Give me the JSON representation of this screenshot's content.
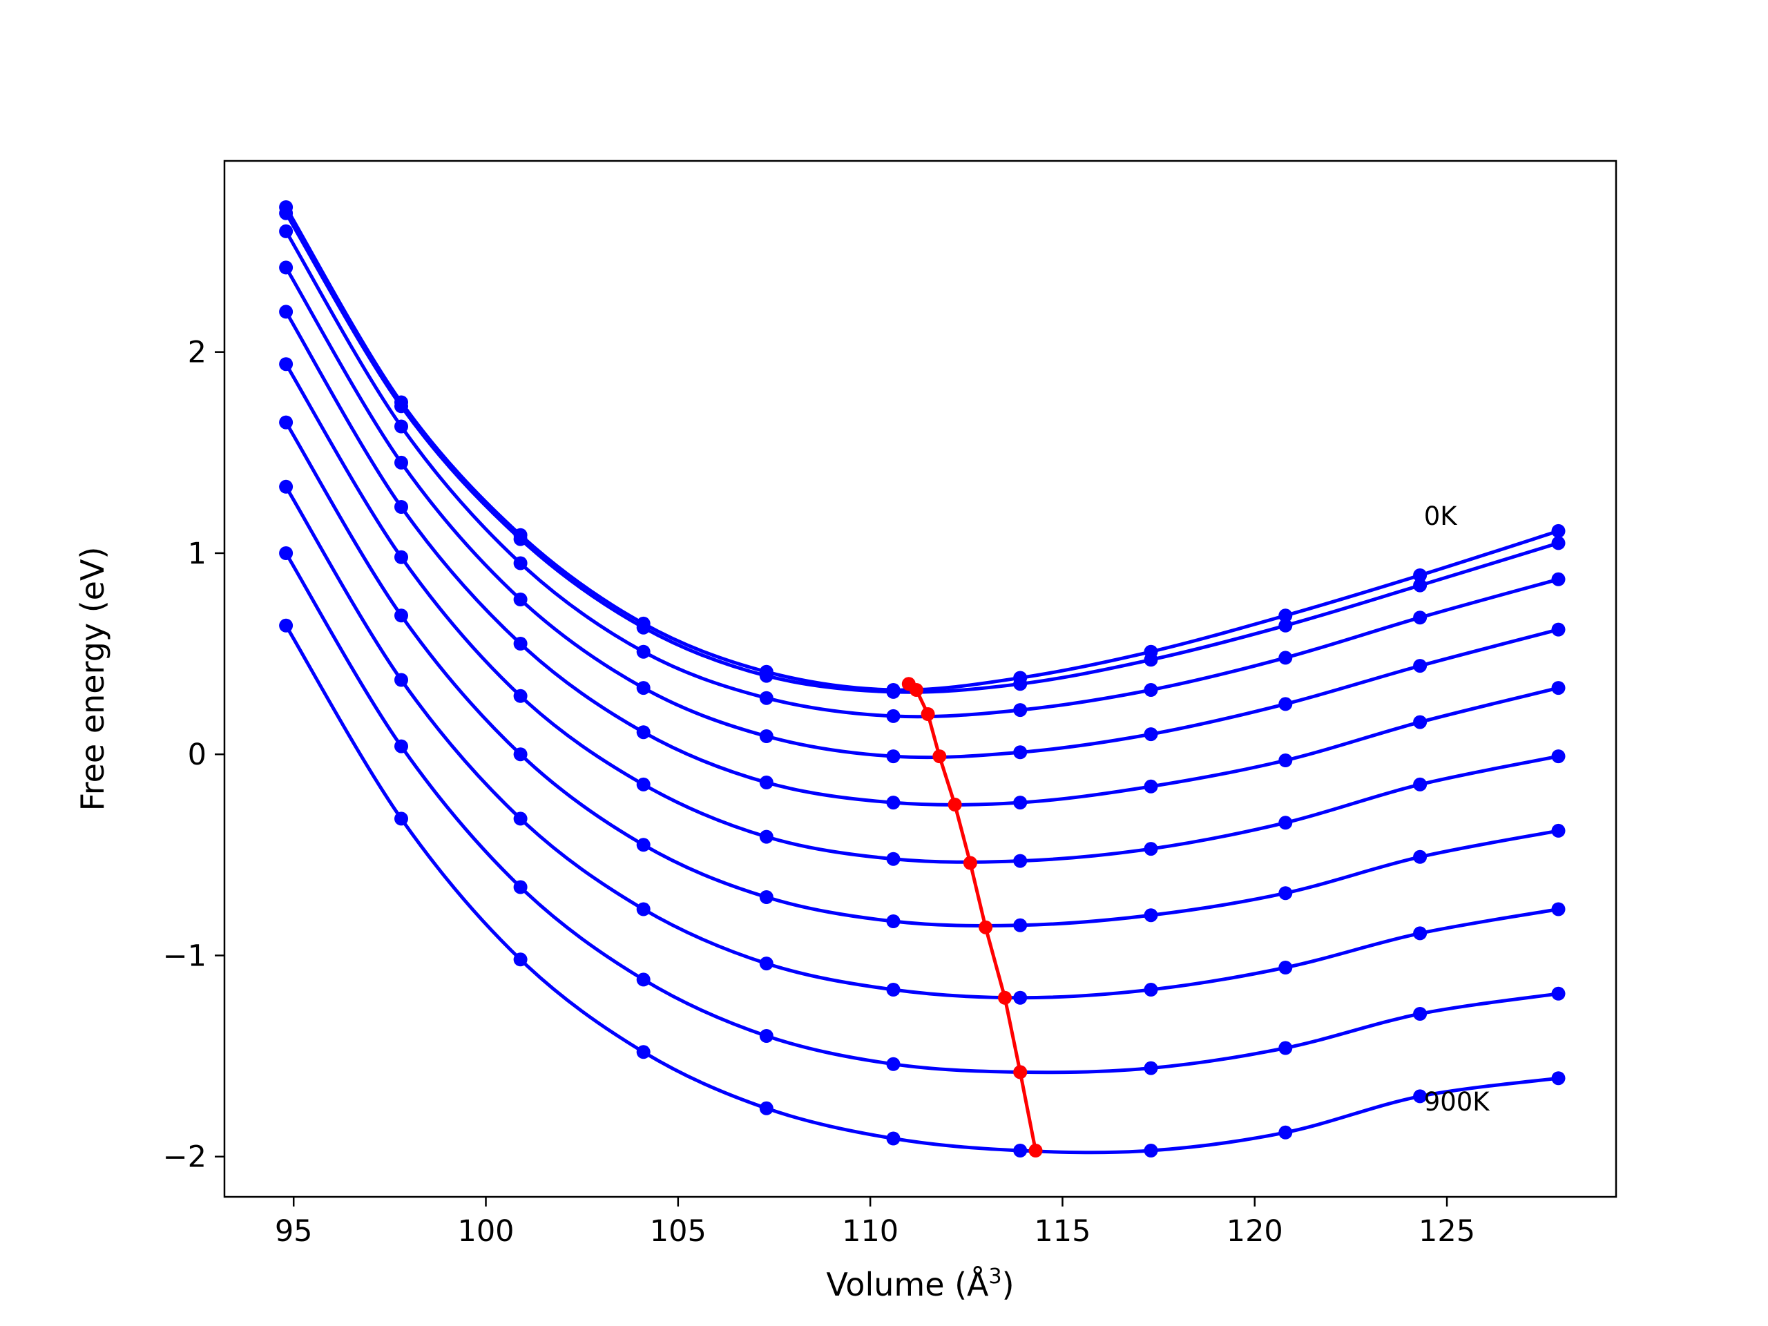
{
  "chart_data": {
    "type": "line",
    "title": "",
    "xlabel": "Volume (Å",
    "xlabel_sup": "3",
    "xlabel_close": ")",
    "ylabel": "Free energy (eV)",
    "xlim": [
      93.2,
      129.4
    ],
    "ylim": [
      -2.2,
      2.95
    ],
    "xticks": [
      95,
      100,
      105,
      110,
      115,
      120,
      125
    ],
    "xtick_labels": [
      "95",
      "100",
      "105",
      "110",
      "115",
      "120",
      "125"
    ],
    "yticks": [
      -2,
      -1,
      0,
      1,
      2
    ],
    "ytick_labels": [
      "−2",
      "−1",
      "0",
      "1",
      "2"
    ],
    "grid": false,
    "legend": "none",
    "x": [
      94.8,
      97.8,
      100.9,
      104.1,
      107.3,
      110.6,
      113.9,
      117.3,
      120.8,
      124.3,
      127.9
    ],
    "series": [
      {
        "values": [
          2.72,
          1.75,
          1.09,
          0.65,
          0.41,
          0.32,
          0.38,
          0.51,
          0.69,
          0.89,
          1.11
        ]
      },
      {
        "values": [
          2.69,
          1.73,
          1.07,
          0.63,
          0.39,
          0.31,
          0.35,
          0.47,
          0.64,
          0.84,
          1.05
        ]
      },
      {
        "values": [
          2.6,
          1.63,
          0.95,
          0.51,
          0.28,
          0.19,
          0.22,
          0.32,
          0.48,
          0.68,
          0.87
        ]
      },
      {
        "values": [
          2.42,
          1.45,
          0.77,
          0.33,
          0.09,
          -0.01,
          0.01,
          0.1,
          0.25,
          0.44,
          0.62
        ]
      },
      {
        "values": [
          2.2,
          1.23,
          0.55,
          0.11,
          -0.14,
          -0.24,
          -0.24,
          -0.16,
          -0.03,
          0.16,
          0.33
        ]
      },
      {
        "values": [
          1.94,
          0.98,
          0.29,
          -0.15,
          -0.41,
          -0.52,
          -0.53,
          -0.47,
          -0.34,
          -0.15,
          -0.01
        ]
      },
      {
        "values": [
          1.65,
          0.69,
          0.0,
          -0.45,
          -0.71,
          -0.83,
          -0.85,
          -0.8,
          -0.69,
          -0.51,
          -0.38
        ]
      },
      {
        "values": [
          1.33,
          0.37,
          -0.32,
          -0.77,
          -1.04,
          -1.17,
          -1.21,
          -1.17,
          -1.06,
          -0.89,
          -0.77
        ]
      },
      {
        "values": [
          1.0,
          0.04,
          -0.66,
          -1.12,
          -1.4,
          -1.54,
          -1.58,
          -1.56,
          -1.46,
          -1.29,
          -1.19
        ]
      },
      {
        "values": [
          0.64,
          -0.32,
          -1.02,
          -1.48,
          -1.76,
          -1.91,
          -1.97,
          -1.97,
          -1.88,
          -1.7,
          -1.61
        ]
      }
    ],
    "minima": {
      "x": [
        111.0,
        111.2,
        111.5,
        111.8,
        112.2,
        112.6,
        113.0,
        113.5,
        113.9,
        114.3
      ],
      "y": [
        0.35,
        0.32,
        0.2,
        -0.01,
        -0.25,
        -0.54,
        -0.86,
        -1.21,
        -1.58,
        -1.97
      ]
    },
    "annotations": [
      {
        "text": "0K",
        "x": 124.4,
        "y": 1.14
      },
      {
        "text": "900K",
        "x": 124.4,
        "y": -1.77
      }
    ],
    "colors": {
      "curves": "#0000ff",
      "minima": "#ff0000",
      "axes": "#000000"
    }
  }
}
